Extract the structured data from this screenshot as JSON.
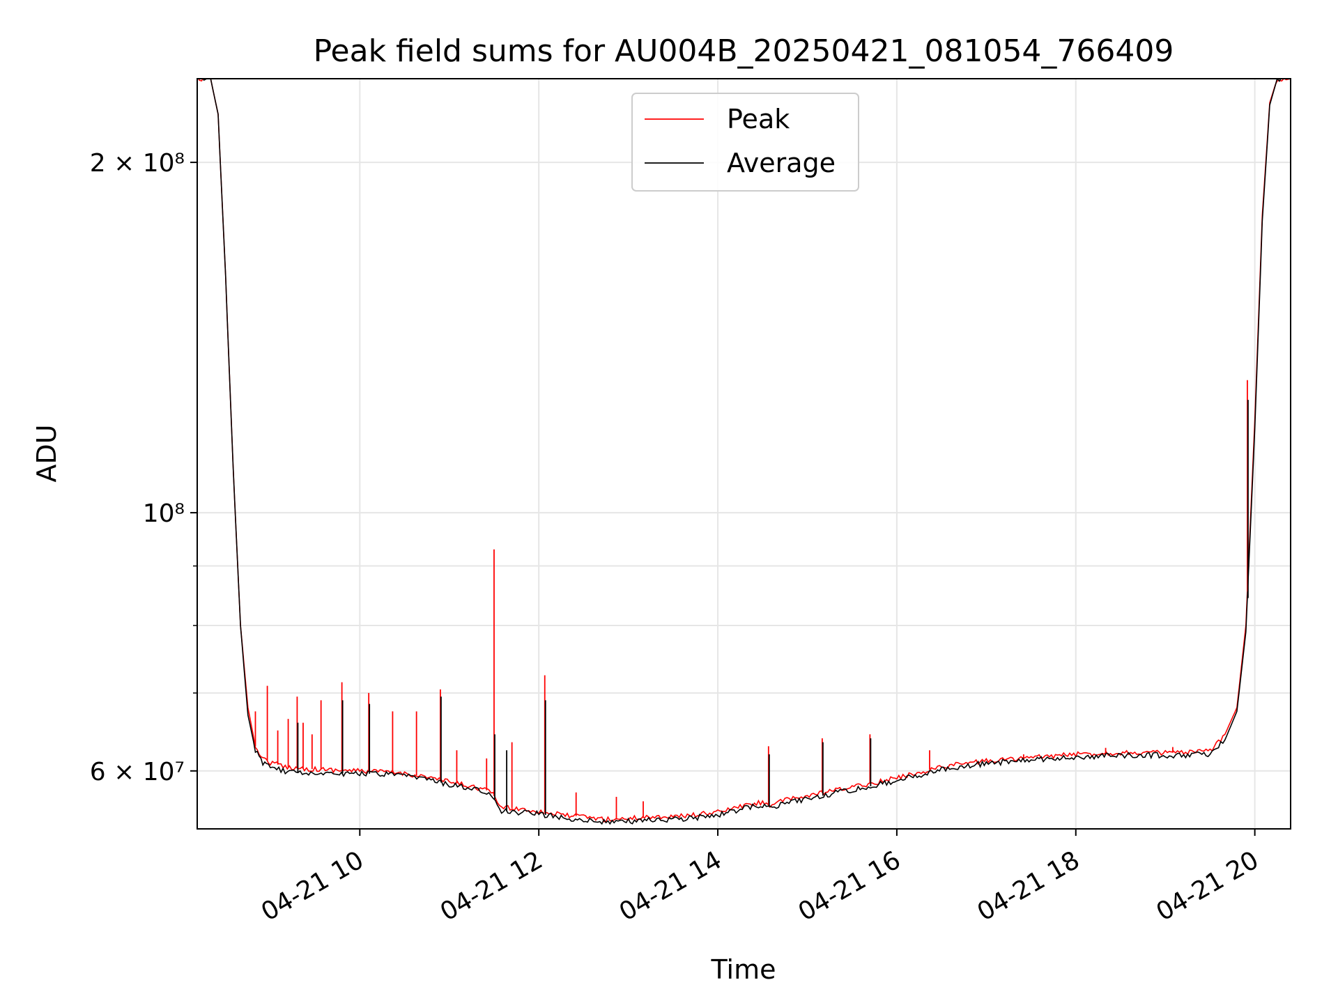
{
  "chart_data": {
    "type": "line",
    "title": "Peak field sums for AU004B_20250421_081054_766409",
    "xlabel": "Time",
    "ylabel": "ADU",
    "x_ticks": [
      "04-21 10",
      "04-21 12",
      "04-21 14",
      "04-21 16",
      "04-21 18",
      "04-21 20"
    ],
    "x_tick_values": [
      "2025-04-21T10:00",
      "2025-04-21T12:00",
      "2025-04-21T14:00",
      "2025-04-21T16:00",
      "2025-04-21T18:00",
      "2025-04-21T20:00"
    ],
    "x_range": [
      "2025-04-21T08:11",
      "2025-04-21T20:24"
    ],
    "y_scale": "log",
    "y_range": [
      53500000,
      236000000
    ],
    "y_ticks": [
      {
        "value": 60000000,
        "label": "6 × 10⁷"
      },
      {
        "value": 100000000,
        "label": "10⁸"
      },
      {
        "value": 200000000,
        "label": "2 × 10⁸"
      }
    ],
    "y_minor_ticks": [
      70000000,
      80000000,
      90000000
    ],
    "grid": true,
    "legend_position": "upper center",
    "series": [
      {
        "name": "Peak",
        "color": "#ff0000",
        "x": [
          "2025-04-21T08:11",
          "2025-04-21T08:20",
          "2025-04-21T08:25",
          "2025-04-21T08:30",
          "2025-04-21T08:35",
          "2025-04-21T08:40",
          "2025-04-21T08:45",
          "2025-04-21T08:50",
          "2025-04-21T08:55",
          "2025-04-21T09:00",
          "2025-04-21T09:10",
          "2025-04-21T09:20",
          "2025-04-21T09:30",
          "2025-04-21T09:45",
          "2025-04-21T10:00",
          "2025-04-21T10:15",
          "2025-04-21T10:30",
          "2025-04-21T10:45",
          "2025-04-21T11:00",
          "2025-04-21T11:15",
          "2025-04-21T11:28",
          "2025-04-21T11:35",
          "2025-04-21T11:45",
          "2025-04-21T12:00",
          "2025-04-21T12:15",
          "2025-04-21T12:30",
          "2025-04-21T12:45",
          "2025-04-21T13:00",
          "2025-04-21T13:15",
          "2025-04-21T13:30",
          "2025-04-21T13:45",
          "2025-04-21T14:00",
          "2025-04-21T14:15",
          "2025-04-21T14:30",
          "2025-04-21T14:35",
          "2025-04-21T14:45",
          "2025-04-21T15:00",
          "2025-04-21T15:15",
          "2025-04-21T15:30",
          "2025-04-21T15:45",
          "2025-04-21T16:00",
          "2025-04-21T16:15",
          "2025-04-21T16:30",
          "2025-04-21T16:45",
          "2025-04-21T17:00",
          "2025-04-21T17:15",
          "2025-04-21T17:30",
          "2025-04-21T17:45",
          "2025-04-21T18:00",
          "2025-04-21T18:15",
          "2025-04-21T18:30",
          "2025-04-21T18:45",
          "2025-04-21T19:00",
          "2025-04-21T19:15",
          "2025-04-21T19:30",
          "2025-04-21T19:40",
          "2025-04-21T19:48",
          "2025-04-21T19:54",
          "2025-04-21T20:00",
          "2025-04-21T20:05",
          "2025-04-21T20:10",
          "2025-04-21T20:15",
          "2025-04-21T20:24"
        ],
        "values": [
          236000000,
          236000000,
          220000000,
          160000000,
          110000000,
          80000000,
          68000000,
          63000000,
          61500000,
          61000000,
          60500000,
          60300000,
          60200000,
          60100000,
          60000000,
          59900000,
          59700000,
          59300000,
          58700000,
          58200000,
          57600000,
          55800000,
          55700000,
          55400000,
          55000000,
          54800000,
          54500000,
          54600000,
          54800000,
          54800000,
          55000000,
          55300000,
          55900000,
          56400000,
          56100000,
          56600000,
          57100000,
          57600000,
          58100000,
          58600000,
          59200000,
          59800000,
          60500000,
          60900000,
          61200000,
          61400000,
          61600000,
          61800000,
          62000000,
          62100000,
          62200000,
          62200000,
          62200000,
          62200000,
          62400000,
          64500000,
          68000000,
          80000000,
          120000000,
          180000000,
          225000000,
          236000000,
          236000000
        ]
      },
      {
        "name": "Average",
        "color": "#000000",
        "x": [
          "2025-04-21T08:11",
          "2025-04-21T08:20",
          "2025-04-21T08:25",
          "2025-04-21T08:30",
          "2025-04-21T08:35",
          "2025-04-21T08:40",
          "2025-04-21T08:45",
          "2025-04-21T08:50",
          "2025-04-21T08:55",
          "2025-04-21T09:00",
          "2025-04-21T09:10",
          "2025-04-21T09:20",
          "2025-04-21T09:30",
          "2025-04-21T09:45",
          "2025-04-21T10:00",
          "2025-04-21T10:15",
          "2025-04-21T10:30",
          "2025-04-21T10:45",
          "2025-04-21T11:00",
          "2025-04-21T11:15",
          "2025-04-21T11:28",
          "2025-04-21T11:35",
          "2025-04-21T11:45",
          "2025-04-21T12:00",
          "2025-04-21T12:15",
          "2025-04-21T12:30",
          "2025-04-21T12:45",
          "2025-04-21T13:00",
          "2025-04-21T13:15",
          "2025-04-21T13:30",
          "2025-04-21T13:45",
          "2025-04-21T14:00",
          "2025-04-21T14:15",
          "2025-04-21T14:30",
          "2025-04-21T14:35",
          "2025-04-21T14:45",
          "2025-04-21T15:00",
          "2025-04-21T15:15",
          "2025-04-21T15:30",
          "2025-04-21T15:45",
          "2025-04-21T16:00",
          "2025-04-21T16:15",
          "2025-04-21T16:30",
          "2025-04-21T16:45",
          "2025-04-21T17:00",
          "2025-04-21T17:15",
          "2025-04-21T17:30",
          "2025-04-21T17:45",
          "2025-04-21T18:00",
          "2025-04-21T18:15",
          "2025-04-21T18:30",
          "2025-04-21T18:45",
          "2025-04-21T19:00",
          "2025-04-21T19:15",
          "2025-04-21T19:30",
          "2025-04-21T19:40",
          "2025-04-21T19:48",
          "2025-04-21T19:54",
          "2025-04-21T20:00",
          "2025-04-21T20:05",
          "2025-04-21T20:10",
          "2025-04-21T20:15",
          "2025-04-21T20:24"
        ],
        "values": [
          236000000,
          236000000,
          220000000,
          160000000,
          110000000,
          80000000,
          67000000,
          62500000,
          61000000,
          60400000,
          60000000,
          59800000,
          59800000,
          59700000,
          59700000,
          59600000,
          59400000,
          59000000,
          58400000,
          57900000,
          57300000,
          55400000,
          55300000,
          55100000,
          54700000,
          54500000,
          54200000,
          54300000,
          54500000,
          54500000,
          54700000,
          55000000,
          55600000,
          56100000,
          55800000,
          56300000,
          56800000,
          57300000,
          57800000,
          58300000,
          58900000,
          59500000,
          60200000,
          60600000,
          60900000,
          61100000,
          61300000,
          61500000,
          61700000,
          61800000,
          61900000,
          61900000,
          61900000,
          61900000,
          62000000,
          63800000,
          67500000,
          79000000,
          118000000,
          178000000,
          224000000,
          236000000,
          236000000
        ]
      }
    ],
    "peak_spikes": [
      {
        "x": "2025-04-21T08:50",
        "value": 67500000
      },
      {
        "x": "2025-04-21T08:58",
        "value": 71000000
      },
      {
        "x": "2025-04-21T09:05",
        "value": 65000000
      },
      {
        "x": "2025-04-21T09:12",
        "value": 66500000
      },
      {
        "x": "2025-04-21T09:18",
        "value": 69500000
      },
      {
        "x": "2025-04-21T09:22",
        "value": 66000000
      },
      {
        "x": "2025-04-21T09:28",
        "value": 64500000
      },
      {
        "x": "2025-04-21T09:34",
        "value": 69000000
      },
      {
        "x": "2025-04-21T09:48",
        "value": 71500000
      },
      {
        "x": "2025-04-21T10:06",
        "value": 70000000
      },
      {
        "x": "2025-04-21T10:22",
        "value": 67500000
      },
      {
        "x": "2025-04-21T10:38",
        "value": 67500000
      },
      {
        "x": "2025-04-21T10:54",
        "value": 70500000
      },
      {
        "x": "2025-04-21T11:05",
        "value": 62500000
      },
      {
        "x": "2025-04-21T11:25",
        "value": 61500000
      },
      {
        "x": "2025-04-21T11:30",
        "value": 93000000
      },
      {
        "x": "2025-04-21T11:42",
        "value": 63500000
      },
      {
        "x": "2025-04-21T12:04",
        "value": 72500000
      },
      {
        "x": "2025-04-21T12:25",
        "value": 57500000
      },
      {
        "x": "2025-04-21T12:52",
        "value": 57000000
      },
      {
        "x": "2025-04-21T13:10",
        "value": 56500000
      },
      {
        "x": "2025-04-21T14:34",
        "value": 63000000
      },
      {
        "x": "2025-04-21T15:10",
        "value": 64000000
      },
      {
        "x": "2025-04-21T15:42",
        "value": 64500000
      },
      {
        "x": "2025-04-21T16:22",
        "value": 62500000
      },
      {
        "x": "2025-04-21T17:25",
        "value": 62000000
      },
      {
        "x": "2025-04-21T18:20",
        "value": 62800000
      },
      {
        "x": "2025-04-21T19:05",
        "value": 62900000
      },
      {
        "x": "2025-04-21T19:55",
        "value": 130000000
      }
    ],
    "average_spikes": [
      {
        "x": "2025-04-21T09:18",
        "value": 66000000
      },
      {
        "x": "2025-04-21T09:48",
        "value": 69000000
      },
      {
        "x": "2025-04-21T10:06",
        "value": 68500000
      },
      {
        "x": "2025-04-21T10:54",
        "value": 69500000
      },
      {
        "x": "2025-04-21T11:30",
        "value": 64500000
      },
      {
        "x": "2025-04-21T11:38",
        "value": 62500000
      },
      {
        "x": "2025-04-21T12:04",
        "value": 69000000
      },
      {
        "x": "2025-04-21T14:34",
        "value": 62000000
      },
      {
        "x": "2025-04-21T15:10",
        "value": 63500000
      },
      {
        "x": "2025-04-21T15:42",
        "value": 64000000
      },
      {
        "x": "2025-04-21T19:55",
        "value": 125000000
      }
    ]
  }
}
